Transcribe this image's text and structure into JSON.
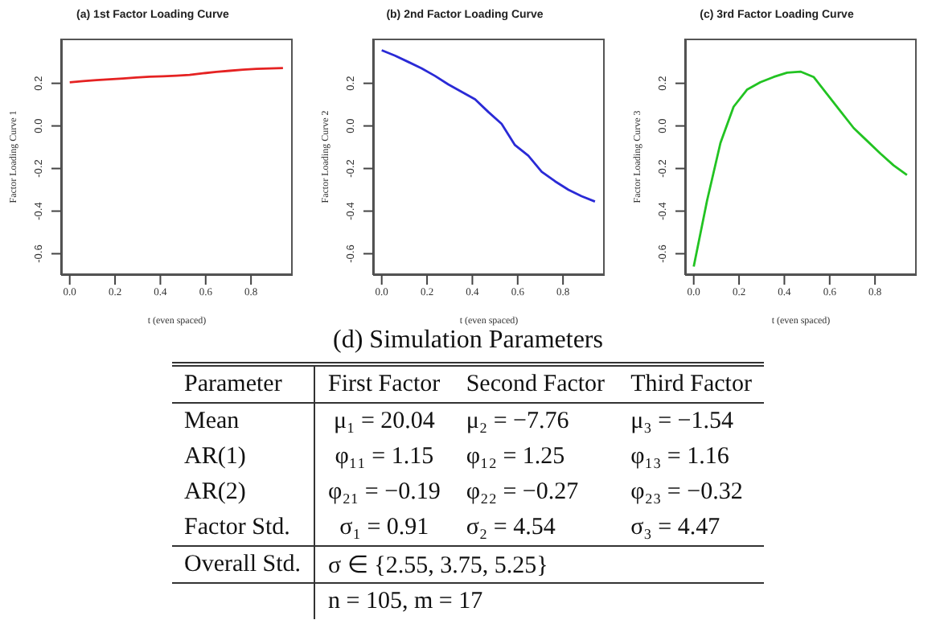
{
  "chart_data": [
    {
      "type": "line",
      "title": "(a) 1st Factor Loading Curve",
      "xlabel": "t (even spaced)",
      "ylabel": "Factor Loading Curve 1",
      "x": [
        0,
        0.059,
        0.118,
        0.176,
        0.235,
        0.294,
        0.353,
        0.412,
        0.471,
        0.529,
        0.588,
        0.647,
        0.706,
        0.765,
        0.824,
        0.882,
        0.941
      ],
      "series": [
        {
          "color": "#e52222",
          "values": [
            0.205,
            0.21,
            0.215,
            0.219,
            0.223,
            0.227,
            0.231,
            0.233,
            0.236,
            0.24,
            0.247,
            0.254,
            0.259,
            0.264,
            0.268,
            0.27,
            0.272
          ]
        }
      ],
      "xlim": [
        -0.038,
        0.984
      ],
      "ylim": [
        -0.7,
        0.41
      ],
      "xticks": [
        {
          "value": 0,
          "label": "0.0"
        },
        {
          "value": 0.2,
          "label": "0.2"
        },
        {
          "value": 0.4,
          "label": "0.4"
        },
        {
          "value": 0.6,
          "label": "0.6"
        },
        {
          "value": 0.8,
          "label": "0.8"
        }
      ],
      "yticks": [
        {
          "value": -0.6,
          "label": "-0.6"
        },
        {
          "value": -0.4,
          "label": "-0.4"
        },
        {
          "value": -0.2,
          "label": "-0.2"
        },
        {
          "value": 0,
          "label": "0.0"
        },
        {
          "value": 0.2,
          "label": "0.2"
        }
      ]
    },
    {
      "type": "line",
      "title": "(b) 2nd Factor Loading Curve",
      "xlabel": "t (even spaced)",
      "ylabel": "Factor Loading Curve 2",
      "x": [
        0,
        0.059,
        0.118,
        0.176,
        0.235,
        0.294,
        0.353,
        0.412,
        0.471,
        0.529,
        0.588,
        0.647,
        0.706,
        0.765,
        0.824,
        0.882,
        0.941
      ],
      "series": [
        {
          "color": "#2a2ad6",
          "values": [
            0.355,
            0.33,
            0.3,
            0.27,
            0.235,
            0.195,
            0.16,
            0.125,
            0.065,
            0.01,
            -0.09,
            -0.14,
            -0.215,
            -0.26,
            -0.3,
            -0.33,
            -0.355
          ]
        }
      ],
      "xlim": [
        -0.038,
        0.984
      ],
      "ylim": [
        -0.7,
        0.41
      ],
      "xticks": [
        {
          "value": 0,
          "label": "0.0"
        },
        {
          "value": 0.2,
          "label": "0.2"
        },
        {
          "value": 0.4,
          "label": "0.4"
        },
        {
          "value": 0.6,
          "label": "0.6"
        },
        {
          "value": 0.8,
          "label": "0.8"
        }
      ],
      "yticks": [
        {
          "value": -0.6,
          "label": "-0.6"
        },
        {
          "value": -0.4,
          "label": "-0.4"
        },
        {
          "value": -0.2,
          "label": "-0.2"
        },
        {
          "value": 0,
          "label": "0.0"
        },
        {
          "value": 0.2,
          "label": "0.2"
        }
      ]
    },
    {
      "type": "line",
      "title": "(c) 3rd Factor Loading Curve",
      "xlabel": "t (even spaced)",
      "ylabel": "Factor Loading Curve 3",
      "x": [
        0,
        0.059,
        0.118,
        0.176,
        0.235,
        0.294,
        0.353,
        0.412,
        0.471,
        0.529,
        0.588,
        0.647,
        0.706,
        0.765,
        0.824,
        0.882,
        0.941
      ],
      "series": [
        {
          "color": "#22c322",
          "values": [
            -0.66,
            -0.35,
            -0.08,
            0.09,
            0.17,
            0.205,
            0.23,
            0.25,
            0.255,
            0.23,
            0.15,
            0.07,
            -0.01,
            -0.07,
            -0.13,
            -0.185,
            -0.23
          ]
        }
      ],
      "xlim": [
        -0.038,
        0.984
      ],
      "ylim": [
        -0.7,
        0.41
      ],
      "xticks": [
        {
          "value": 0,
          "label": "0.0"
        },
        {
          "value": 0.2,
          "label": "0.2"
        },
        {
          "value": 0.4,
          "label": "0.4"
        },
        {
          "value": 0.6,
          "label": "0.6"
        },
        {
          "value": 0.8,
          "label": "0.8"
        }
      ],
      "yticks": [
        {
          "value": -0.6,
          "label": "-0.6"
        },
        {
          "value": -0.4,
          "label": "-0.4"
        },
        {
          "value": -0.2,
          "label": "-0.2"
        },
        {
          "value": 0,
          "label": "0.0"
        },
        {
          "value": 0.2,
          "label": "0.2"
        }
      ]
    },
    {
      "type": "other",
      "title": "(d) Simulation Parameters",
      "annotations": [
        "Parameter",
        "First Factor",
        "Second Factor",
        "Third Factor",
        "Mean",
        "μ₁ = 20.04",
        "μ₂ = −7.76",
        "μ₃ = −1.54",
        "AR(1)",
        "φ₁₁ = 1.15",
        "φ₁₂ = 1.25",
        "φ₁₃ = 1.16",
        "AR(2)",
        "φ₂₁ = −0.19",
        "φ₂₂ = −0.27",
        "φ₂₃ = −0.32",
        "Factor Std.",
        "σ₁ = 0.91",
        "σ₂ = 4.54",
        "σ₃ = 4.47",
        "Overall Std.",
        "σ ∈ {2.55, 3.75, 5.25}",
        "n = 105, m = 17"
      ]
    }
  ]
}
